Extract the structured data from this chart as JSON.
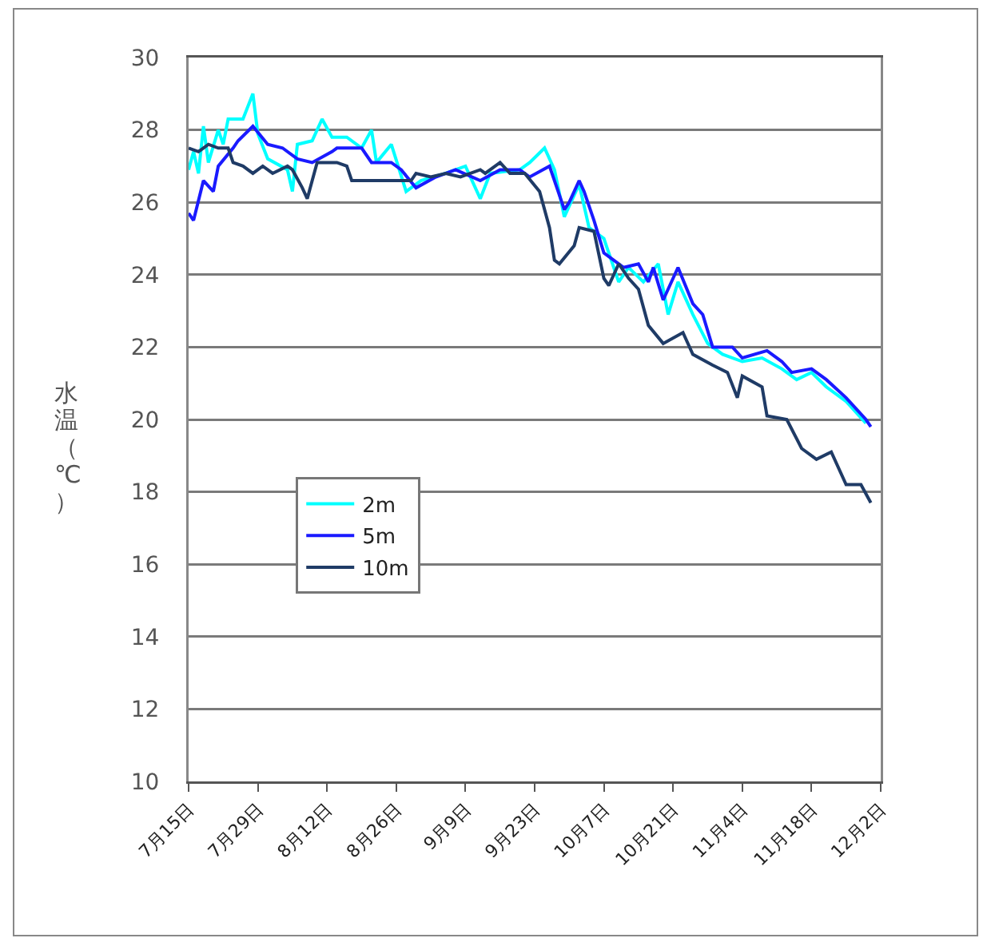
{
  "chart_data": {
    "type": "line",
    "ylabel": "水温（℃）",
    "legend": "left",
    "grid": "y",
    "marker": "none",
    "line_style": "solid",
    "xlim": [
      "--07-15",
      "--12-02"
    ],
    "xticks": [
      {
        "value": "--07-15",
        "label": "7月15日"
      },
      {
        "value": "--07-29",
        "label": "7月29日"
      },
      {
        "value": "--08-12",
        "label": "8月12日"
      },
      {
        "value": "--08-26",
        "label": "8月26日"
      },
      {
        "value": "--09-09",
        "label": "9月9日"
      },
      {
        "value": "--09-23",
        "label": "9月23日"
      },
      {
        "value": "--10-07",
        "label": "10月7日"
      },
      {
        "value": "--10-21",
        "label": "10月21日"
      },
      {
        "value": "--11-04",
        "label": "11月4日"
      },
      {
        "value": "--11-18",
        "label": "11月18日"
      },
      {
        "value": "--12-02",
        "label": "12月2日"
      }
    ],
    "ylim": [
      10,
      30
    ],
    "yticks": [
      10,
      12,
      14,
      16,
      18,
      20,
      22,
      24,
      26,
      28,
      30
    ],
    "series": [
      {
        "name": "2m",
        "color": "#00ffff",
        "x": [
          "--07-15",
          "--07-16",
          "--07-17",
          "--07-18",
          "--07-19",
          "--07-21",
          "--07-22",
          "--07-23",
          "--07-26",
          "--07-28",
          "--07-29",
          "--07-31",
          "--08-04",
          "--08-05",
          "--08-06",
          "--08-09",
          "--08-11",
          "--08-13",
          "--08-16",
          "--08-19",
          "--08-21",
          "--08-22",
          "--08-25",
          "--08-28",
          "--08-31",
          "--09-05",
          "--09-09",
          "--09-12",
          "--09-14",
          "--09-20",
          "--09-22",
          "--09-25",
          "--09-27",
          "--09-29",
          "--10-02",
          "--10-04",
          "--10-07",
          "--10-10",
          "--10-12",
          "--10-15",
          "--10-18",
          "--10-20",
          "--10-22",
          "--10-25",
          "--10-28",
          "--10-31",
          "--11-04",
          "--11-08",
          "--11-12",
          "--11-15",
          "--11-18",
          "--11-21",
          "--11-25",
          "--11-29"
        ],
        "values": [
          26.9,
          27.4,
          26.8,
          28.1,
          27.1,
          28.0,
          27.6,
          28.3,
          28.3,
          29.0,
          27.9,
          27.2,
          26.9,
          26.3,
          27.6,
          27.7,
          28.3,
          27.8,
          27.8,
          27.5,
          28.0,
          27.1,
          27.6,
          26.3,
          26.6,
          26.8,
          27.0,
          26.1,
          26.8,
          26.9,
          27.1,
          27.5,
          26.9,
          25.6,
          26.5,
          25.3,
          25.0,
          23.8,
          24.2,
          23.8,
          24.3,
          22.9,
          23.8,
          22.9,
          22.1,
          21.8,
          21.6,
          21.7,
          21.4,
          21.1,
          21.3,
          20.9,
          20.5,
          19.9
        ]
      },
      {
        "name": "5m",
        "color": "#1a1aff",
        "x": [
          "--07-15",
          "--07-16",
          "--07-18",
          "--07-20",
          "--07-21",
          "--07-24",
          "--07-25",
          "--07-28",
          "--07-31",
          "--08-03",
          "--08-06",
          "--08-09",
          "--08-13",
          "--08-14",
          "--08-19",
          "--08-21",
          "--08-25",
          "--08-27",
          "--08-30",
          "--09-03",
          "--09-07",
          "--09-12",
          "--09-16",
          "--09-20",
          "--09-22",
          "--09-26",
          "--09-29",
          "--09-30",
          "--10-02",
          "--10-03",
          "--10-05",
          "--10-07",
          "--10-11",
          "--10-14",
          "--10-16",
          "--10-17",
          "--10-19",
          "--10-22",
          "--10-25",
          "--10-27",
          "--10-29",
          "--11-02",
          "--11-04",
          "--11-09",
          "--11-12",
          "--11-14",
          "--11-18",
          "--11-21",
          "--11-25",
          "--11-29",
          "--11-30"
        ],
        "values": [
          25.7,
          25.5,
          26.6,
          26.3,
          27.0,
          27.5,
          27.7,
          28.1,
          27.6,
          27.5,
          27.2,
          27.1,
          27.4,
          27.5,
          27.5,
          27.1,
          27.1,
          26.9,
          26.4,
          26.7,
          26.9,
          26.6,
          26.9,
          26.9,
          26.7,
          27.0,
          25.8,
          26.0,
          26.6,
          26.3,
          25.5,
          24.6,
          24.2,
          24.3,
          23.8,
          24.2,
          23.3,
          24.2,
          23.2,
          22.9,
          22.0,
          22.0,
          21.7,
          21.9,
          21.6,
          21.3,
          21.4,
          21.1,
          20.6,
          20.0,
          19.8
        ]
      },
      {
        "name": "10m",
        "color": "#1f3b66",
        "x": [
          "--07-15",
          "--07-17",
          "--07-19",
          "--07-21",
          "--07-23",
          "--07-24",
          "--07-26",
          "--07-28",
          "--07-30",
          "--08-01",
          "--08-04",
          "--08-05",
          "--08-07",
          "--08-08",
          "--08-09",
          "--08-10",
          "--08-14",
          "--08-16",
          "--08-17",
          "--08-23",
          "--08-29",
          "--08-30",
          "--09-02",
          "--09-05",
          "--09-08",
          "--09-12",
          "--09-13",
          "--09-16",
          "--09-18",
          "--09-21",
          "--09-24",
          "--09-26",
          "--09-27",
          "--09-28",
          "--10-01",
          "--10-02",
          "--10-05",
          "--10-07",
          "--10-08",
          "--10-10",
          "--10-12",
          "--10-14",
          "--10-16",
          "--10-19",
          "--10-23",
          "--10-25",
          "--10-29",
          "--11-01",
          "--11-03",
          "--11-04",
          "--11-08",
          "--11-09",
          "--11-13",
          "--11-16",
          "--11-19",
          "--11-22",
          "--11-25",
          "--11-28",
          "--11-30"
        ],
        "values": [
          27.5,
          27.4,
          27.6,
          27.5,
          27.5,
          27.1,
          27.0,
          26.8,
          27.0,
          26.8,
          27.0,
          26.9,
          26.4,
          26.1,
          26.6,
          27.1,
          27.1,
          27.0,
          26.6,
          26.6,
          26.6,
          26.8,
          26.7,
          26.8,
          26.7,
          26.9,
          26.8,
          27.1,
          26.8,
          26.8,
          26.3,
          25.3,
          24.4,
          24.3,
          24.8,
          25.3,
          25.2,
          23.9,
          23.7,
          24.3,
          23.9,
          23.6,
          22.6,
          22.1,
          22.4,
          21.8,
          21.5,
          21.3,
          20.6,
          21.2,
          20.9,
          20.1,
          20.0,
          19.2,
          18.9,
          19.1,
          18.2,
          18.2,
          17.7
        ]
      }
    ]
  }
}
